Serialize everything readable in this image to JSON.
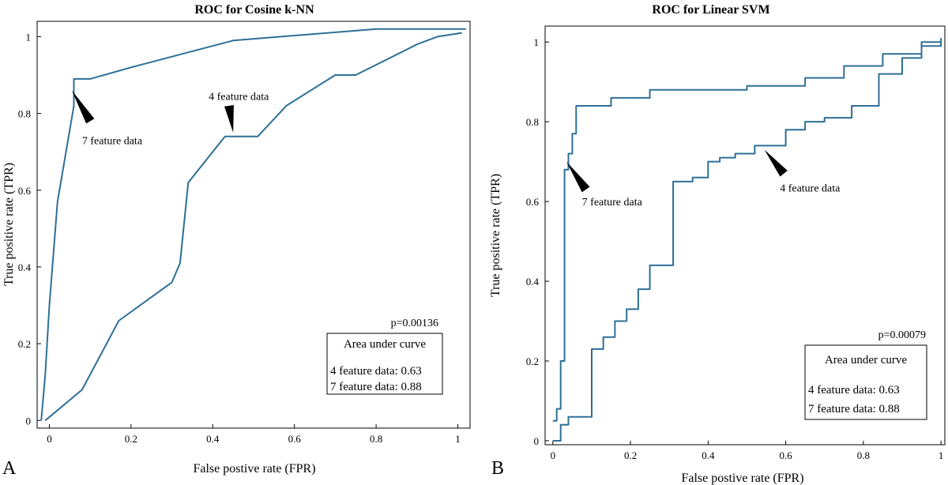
{
  "chart_data": [
    {
      "type": "line",
      "panel": "A",
      "title": "ROC for Cosine k-NN",
      "xlabel": "False postive rate (FPR)",
      "ylabel": "True positive rate (TPR)",
      "xlim": [
        -0.03,
        1.03
      ],
      "ylim": [
        -0.02,
        1.04
      ],
      "xticks": [
        "0",
        "0.2",
        "0.4",
        "0.6",
        "0.8",
        "1"
      ],
      "xtick_values": [
        0,
        0.2,
        0.4,
        0.6,
        0.8,
        1
      ],
      "yticks": [
        "0",
        "0.2",
        "0.4",
        "0.6",
        "0.8",
        "1"
      ],
      "ytick_values": [
        0,
        0.2,
        0.4,
        0.6,
        0.8,
        1
      ],
      "series": [
        {
          "name": "7 feature data",
          "x": [
            -0.02,
            -0.01,
            0.0,
            0.02,
            0.06,
            0.06,
            0.1,
            0.2,
            0.45,
            0.8,
            1.02
          ],
          "y": [
            0.0,
            0.12,
            0.3,
            0.57,
            0.82,
            0.89,
            0.89,
            0.92,
            0.99,
            1.02,
            1.02
          ]
        },
        {
          "name": "4 feature data",
          "x": [
            -0.01,
            0.08,
            0.17,
            0.3,
            0.32,
            0.34,
            0.43,
            0.51,
            0.58,
            0.7,
            0.75,
            0.9,
            0.95,
            1.01
          ],
          "y": [
            0.0,
            0.08,
            0.26,
            0.36,
            0.41,
            0.62,
            0.74,
            0.74,
            0.82,
            0.9,
            0.9,
            0.98,
            1.0,
            1.01
          ]
        }
      ],
      "annotations": [
        {
          "text": "4 feature data",
          "x": 0.45,
          "y": 0.74
        },
        {
          "text": "7 feature data",
          "x": 0.06,
          "y": 0.85
        }
      ],
      "p_value": "p=0.00136",
      "legend": {
        "position": "bottom-right",
        "title": "Area under curve",
        "entries": [
          "4 feature data: 0.63",
          "7 feature data: 0.88"
        ]
      },
      "grid": false
    },
    {
      "type": "line",
      "panel": "B",
      "title": "ROC for Linear SVM",
      "xlabel": "False postive rate (FPR)",
      "ylabel": "True positive rate (TPR)",
      "xlim": [
        -0.02,
        1.01
      ],
      "ylim": [
        -0.01,
        1.04
      ],
      "xticks": [
        "0",
        "0.2",
        "0.4",
        "0.6",
        "0.8",
        "1"
      ],
      "xtick_values": [
        0,
        0.2,
        0.4,
        0.6,
        0.8,
        1
      ],
      "yticks": [
        "0",
        "0.2",
        "0.4",
        "0.6",
        "0.8",
        "1"
      ],
      "ytick_values": [
        0,
        0.2,
        0.4,
        0.6,
        0.8,
        1
      ],
      "series": [
        {
          "name": "7 feature data",
          "x": [
            0,
            0.01,
            0.02,
            0.03,
            0.04,
            0.05,
            0.06,
            0.07,
            0.1,
            0.15,
            0.25,
            0.35,
            0.5,
            0.65,
            0.75,
            0.85,
            0.95,
            1.0
          ],
          "y": [
            0.05,
            0.08,
            0.2,
            0.68,
            0.72,
            0.77,
            0.84,
            0.84,
            0.84,
            0.86,
            0.88,
            0.88,
            0.89,
            0.91,
            0.94,
            0.97,
            1.0,
            1.01
          ]
        },
        {
          "name": "4 feature data",
          "x": [
            0,
            0.02,
            0.04,
            0.06,
            0.1,
            0.13,
            0.16,
            0.19,
            0.22,
            0.25,
            0.31,
            0.36,
            0.4,
            0.43,
            0.47,
            0.52,
            0.55,
            0.6,
            0.65,
            0.7,
            0.77,
            0.84,
            0.9,
            0.95,
            1.0
          ],
          "y": [
            0.0,
            0.04,
            0.06,
            0.06,
            0.23,
            0.26,
            0.3,
            0.33,
            0.38,
            0.44,
            0.65,
            0.66,
            0.7,
            0.71,
            0.72,
            0.74,
            0.74,
            0.78,
            0.8,
            0.81,
            0.84,
            0.92,
            0.96,
            0.99,
            1.0
          ]
        }
      ],
      "annotations": [
        {
          "text": "7 feature data",
          "x": 0.04,
          "y": 0.7
        },
        {
          "text": "4 feature data",
          "x": 0.56,
          "y": 0.73
        }
      ],
      "p_value": "p=0.00079",
      "legend": {
        "position": "bottom-right",
        "title": "Area under curve",
        "entries": [
          "4 feature data: 0.63",
          "7 feature data: 0.88"
        ]
      },
      "grid": false
    }
  ]
}
